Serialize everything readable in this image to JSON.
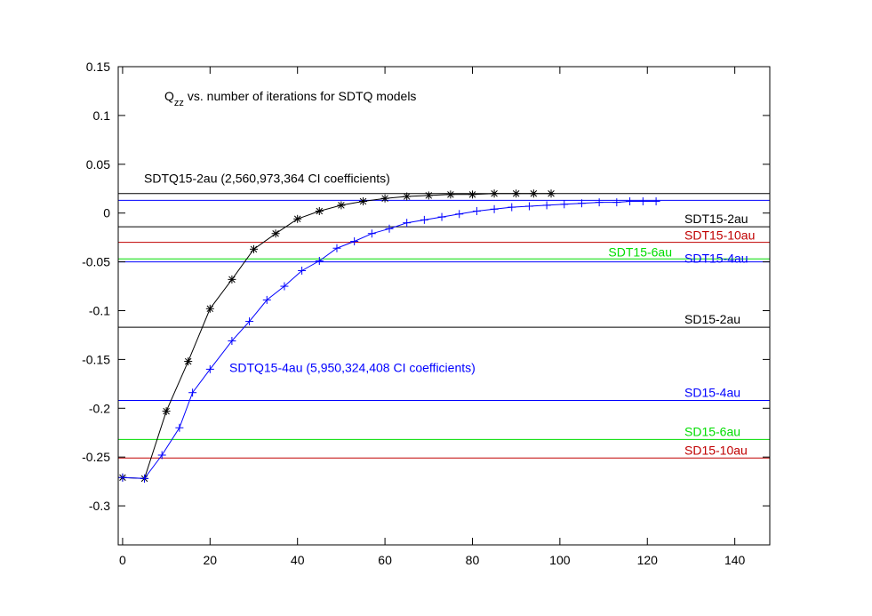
{
  "chart_data": {
    "type": "line",
    "title": "vs. number of iterations for SDTQ models",
    "title_symbol": "Q",
    "title_subscript": "zz",
    "xlim": [
      -1,
      148
    ],
    "ylim": [
      -0.34,
      0.15
    ],
    "x_ticks": [
      0,
      20,
      40,
      60,
      80,
      100,
      120,
      140
    ],
    "y_ticks": [
      0.15,
      0.1,
      0.05,
      0,
      -0.05,
      -0.1,
      -0.15,
      -0.2,
      -0.25,
      -0.3
    ],
    "x_tick_labels": [
      "0",
      "20",
      "40",
      "60",
      "80",
      "100",
      "120",
      "140"
    ],
    "y_tick_labels": [
      "0.15",
      "0.1",
      "0.05",
      "0",
      "-0.05",
      "-0.1",
      "-0.15",
      "-0.2",
      "-0.25",
      "-0.3"
    ],
    "series": [
      {
        "name": "SDTQ15-2au (2,560,973,364 CI coefficients)",
        "color": "#000000",
        "marker": "asterisk",
        "label_position": "upper-left",
        "x": [
          0,
          5,
          10,
          15,
          20,
          25,
          30,
          35,
          40,
          45,
          50,
          55,
          60,
          65,
          70,
          75,
          80,
          85,
          90,
          94,
          98
        ],
        "y": [
          -0.271,
          -0.272,
          -0.203,
          -0.152,
          -0.098,
          -0.068,
          -0.037,
          -0.021,
          -0.006,
          0.002,
          0.008,
          0.012,
          0.015,
          0.017,
          0.018,
          0.019,
          0.019,
          0.02,
          0.02,
          0.02,
          0.02
        ]
      },
      {
        "name": "SDTQ15-4au (5,950,324,408 CI coefficients)",
        "color": "#0000ff",
        "marker": "plus",
        "label_position": "middle-left",
        "x": [
          0,
          5,
          9,
          13,
          16,
          20,
          25,
          29,
          33,
          37,
          41,
          45,
          49,
          53,
          57,
          61,
          65,
          69,
          73,
          77,
          81,
          85,
          89,
          93,
          97,
          101,
          105,
          109,
          113,
          116,
          119,
          122
        ],
        "y": [
          -0.271,
          -0.272,
          -0.248,
          -0.22,
          -0.184,
          -0.16,
          -0.131,
          -0.111,
          -0.089,
          -0.075,
          -0.059,
          -0.049,
          -0.036,
          -0.029,
          -0.021,
          -0.016,
          -0.01,
          -0.007,
          -0.004,
          -0.001,
          0.002,
          0.004,
          0.006,
          0.007,
          0.008,
          0.009,
          0.01,
          0.011,
          0.011,
          0.012,
          0.012,
          0.012
        ]
      }
    ],
    "reference_lines": [
      {
        "y": 0.02,
        "color": "#000000",
        "label": ""
      },
      {
        "y": 0.013,
        "color": "#0000ff",
        "label": ""
      },
      {
        "y": -0.014,
        "color": "#000000",
        "label": "SDT15-2au"
      },
      {
        "y": -0.03,
        "color": "#c00000",
        "label": "SDT15-10au"
      },
      {
        "y": -0.047,
        "color": "#00dd00",
        "label": "SDT15-6au"
      },
      {
        "y": -0.05,
        "color": "#0000ff",
        "label": "SDT15-4au"
      },
      {
        "y": -0.117,
        "color": "#000000",
        "label": "SD15-2au"
      },
      {
        "y": -0.192,
        "color": "#0000ff",
        "label": "SD15-4au"
      },
      {
        "y": -0.232,
        "color": "#00dd00",
        "label": "SD15-6au"
      },
      {
        "y": -0.251,
        "color": "#c00000",
        "label": "SD15-10au"
      }
    ]
  }
}
